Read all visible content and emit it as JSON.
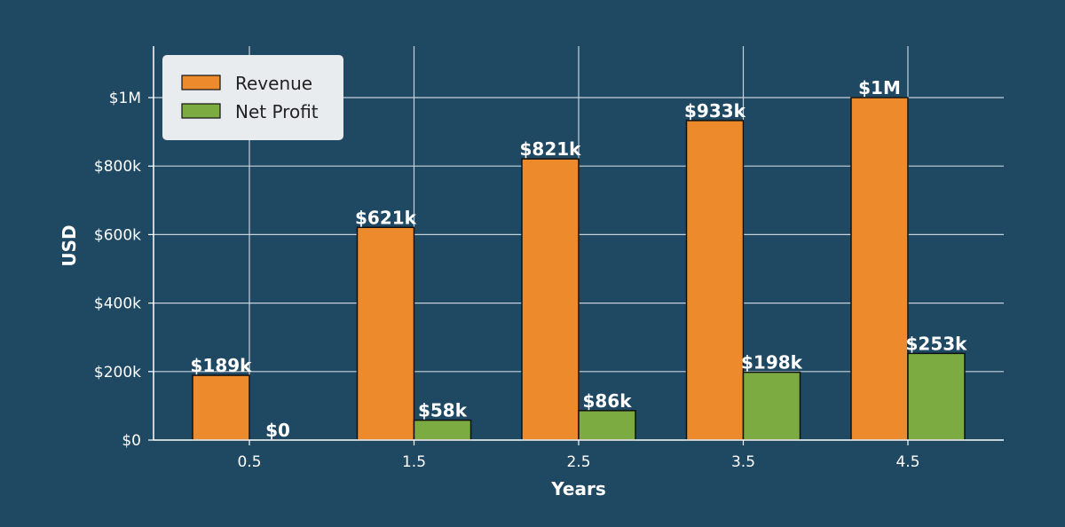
{
  "chart_data": {
    "type": "bar",
    "title": "",
    "xlabel": "Years",
    "ylabel": "USD",
    "categories": [
      "0.5",
      "1.5",
      "2.5",
      "3.5",
      "4.5"
    ],
    "series": [
      {
        "name": "Revenue",
        "color": "#ed8a2c",
        "values": [
          189000,
          621000,
          821000,
          933000,
          1000000
        ],
        "labels": [
          "$189k",
          "$621k",
          "$821k",
          "$933k",
          "$1M"
        ]
      },
      {
        "name": "Net Profit",
        "color": "#7bab41",
        "values": [
          0,
          58000,
          86000,
          198000,
          253000
        ],
        "labels": [
          "$0",
          "$58k",
          "$86k",
          "$198k",
          "$253k"
        ]
      }
    ],
    "y_ticks": [
      {
        "value": 0,
        "label": "$0"
      },
      {
        "value": 200000,
        "label": "$200k"
      },
      {
        "value": 400000,
        "label": "$400k"
      },
      {
        "value": 600000,
        "label": "$600k"
      },
      {
        "value": 800000,
        "label": "$800k"
      },
      {
        "value": 1000000,
        "label": "$1M"
      }
    ],
    "ylim": [
      0,
      1150000
    ],
    "grid": true,
    "legend_position": "top-left",
    "colors": {
      "background": "#1f4863",
      "grid": "#c8d2dc",
      "axis": "#ffffff",
      "legend_bg": "#e8ecef"
    }
  }
}
